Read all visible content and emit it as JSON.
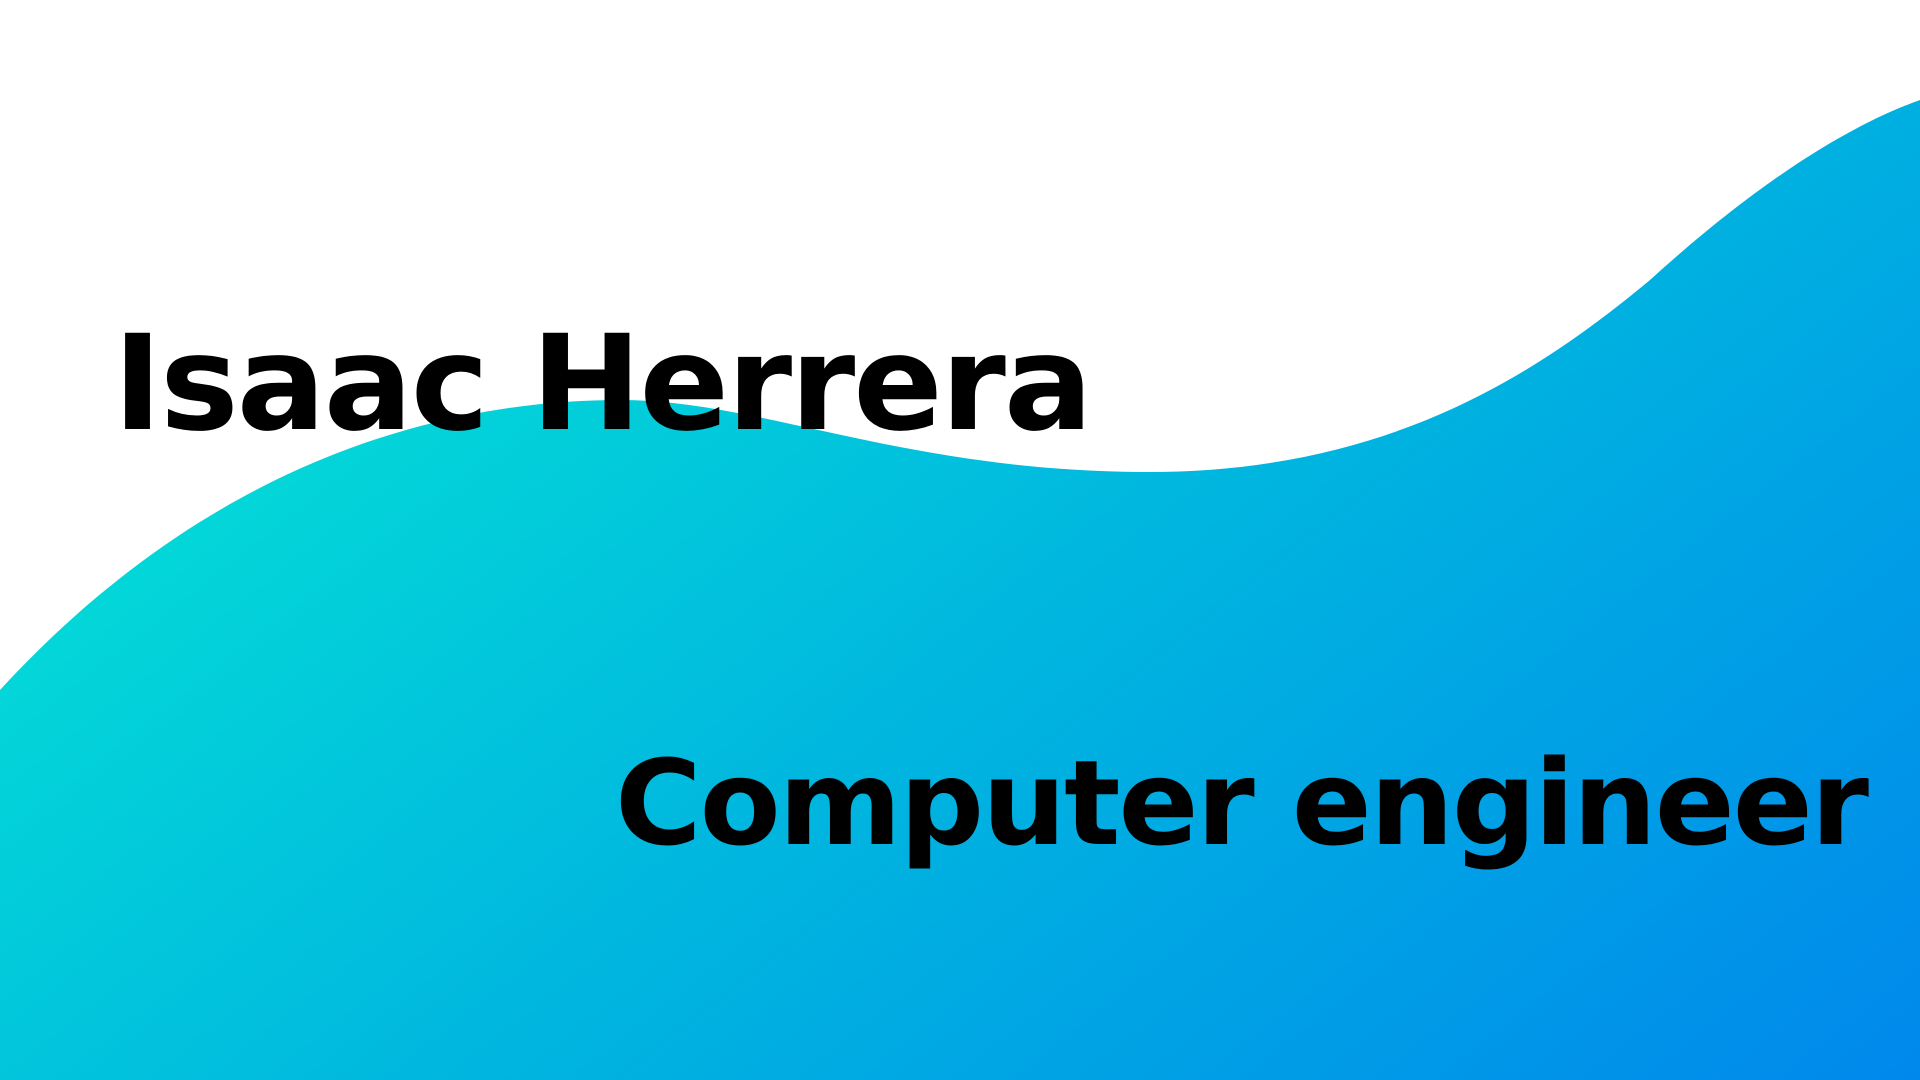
{
  "slide": {
    "name": "Isaac Herrera",
    "role": "Computer engineer"
  },
  "colors": {
    "background": "#ffffff",
    "gradient_start": "#04e0d6",
    "gradient_mid": "#00b3e0",
    "gradient_end": "#0088ec",
    "text": "#000000"
  }
}
